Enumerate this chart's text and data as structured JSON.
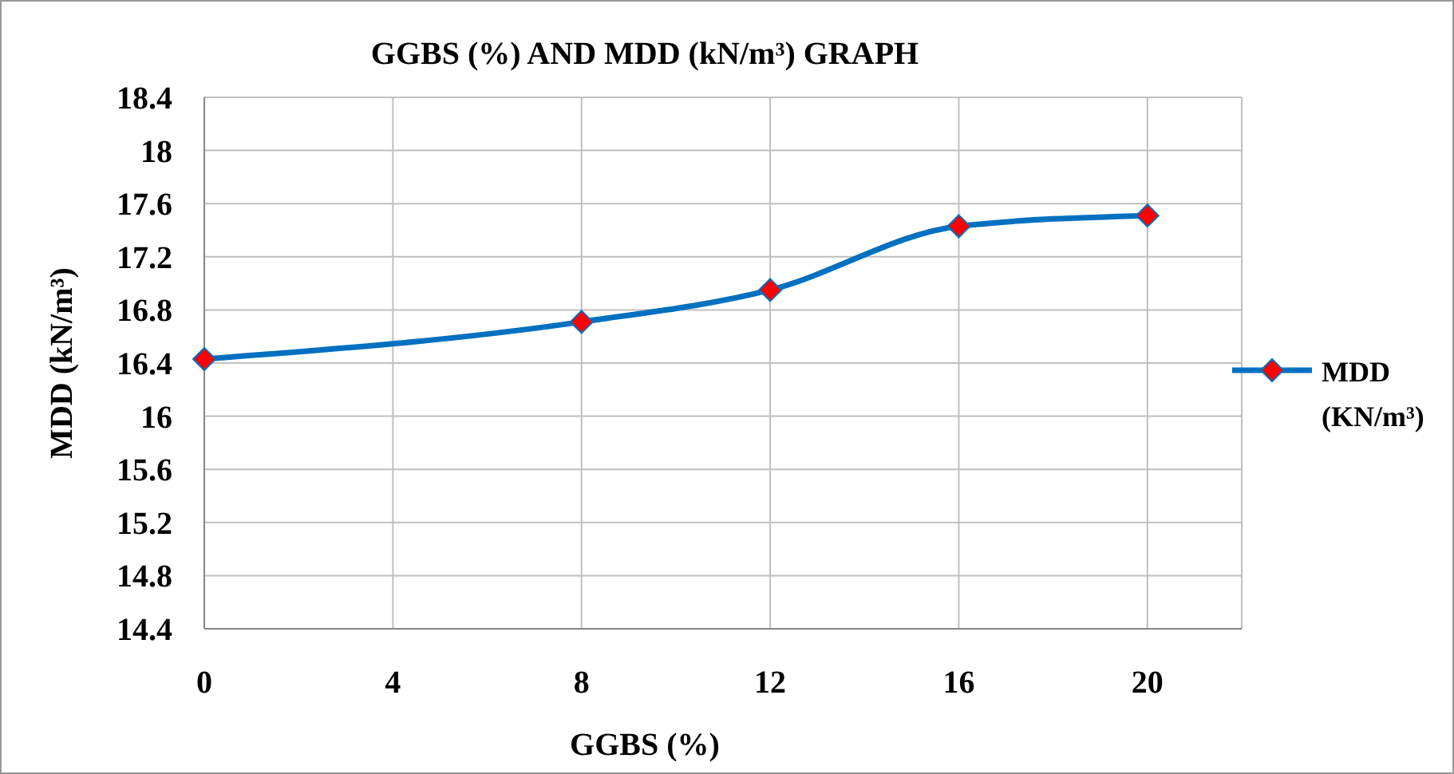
{
  "chart_data": {
    "type": "line",
    "title": "GGBS (%) AND MDD (kN/m³) GRAPH",
    "xlabel": "GGBS (%)",
    "ylabel": "MDD (kN/m³)",
    "x": [
      0,
      8,
      12,
      16,
      20
    ],
    "series": [
      {
        "name": "MDD (KN/m³)",
        "color": "#0070c0",
        "values": [
          16.43,
          16.71,
          16.95,
          17.43,
          17.51
        ]
      }
    ],
    "xlim": [
      0,
      22
    ],
    "xticks": [
      0,
      4,
      8,
      12,
      16,
      20
    ],
    "ylim": [
      14.4,
      18.4
    ],
    "yticks": [
      14.4,
      14.8,
      15.2,
      15.6,
      16,
      16.4,
      16.8,
      17.2,
      17.6,
      18,
      18.4
    ],
    "grid": true,
    "legend": "right",
    "marker": "diamond",
    "line_style": "solid"
  }
}
